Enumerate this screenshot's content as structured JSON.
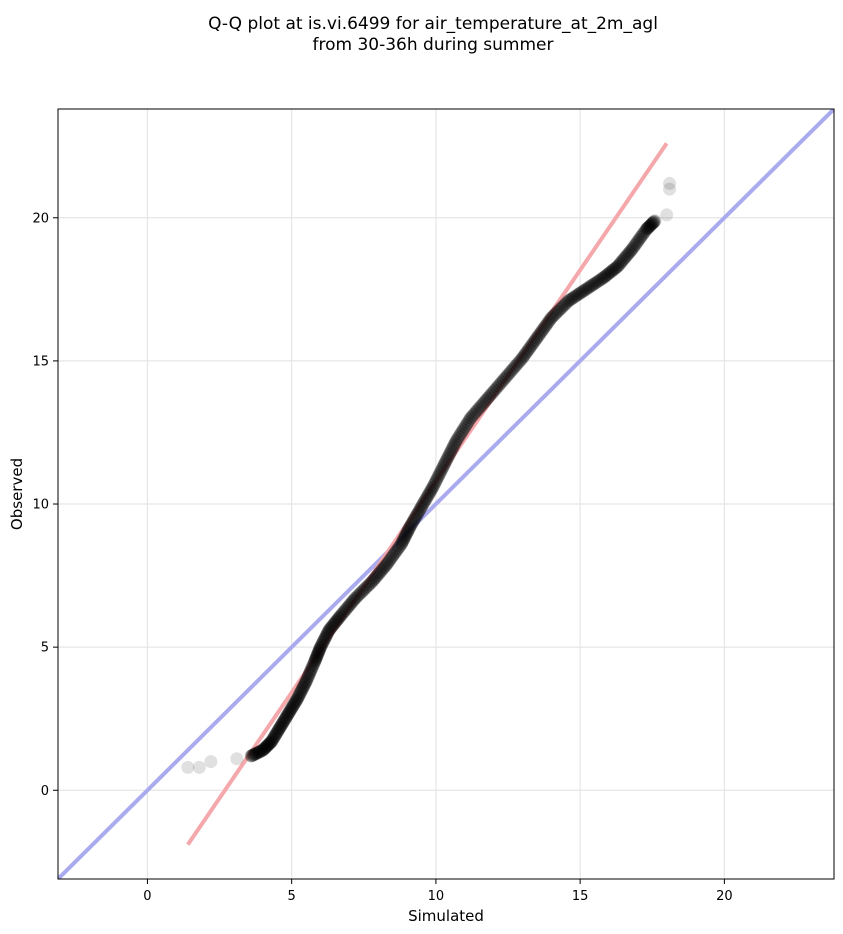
{
  "chart_data": {
    "type": "scatter",
    "title_lines": [
      "Q-Q plot at is.vi.6499 for air_temperature_at_2m_agl",
      "from 30-36h during summer"
    ],
    "xlabel": "Simulated",
    "ylabel": "Observed",
    "xlim": [
      -3.1,
      23.8
    ],
    "ylim": [
      -3.1,
      23.8
    ],
    "xticks": [
      0,
      5,
      10,
      15,
      20
    ],
    "yticks": [
      0,
      5,
      10,
      15,
      20
    ],
    "xtick_labels": [
      "0",
      "5",
      "10",
      "15",
      "20"
    ],
    "ytick_labels": [
      "0",
      "5",
      "10",
      "15",
      "20"
    ],
    "grid": true,
    "identity_line": {
      "from": [
        -3.1,
        -3.1
      ],
      "to": [
        23.8,
        23.8
      ],
      "color": "#aaaaee"
    },
    "fit_line": {
      "from": [
        1.4,
        -1.9
      ],
      "to": [
        18.0,
        22.6
      ],
      "color": "#f4a8ab"
    },
    "point_color": "#000000",
    "quantile_trace": [
      [
        1.4,
        0.8
      ],
      [
        1.8,
        0.8
      ],
      [
        2.2,
        1.0
      ],
      [
        3.1,
        1.1
      ],
      [
        3.6,
        1.2
      ],
      [
        4.0,
        1.4
      ],
      [
        4.3,
        1.7
      ],
      [
        4.6,
        2.2
      ],
      [
        4.9,
        2.7
      ],
      [
        5.2,
        3.2
      ],
      [
        5.5,
        3.8
      ],
      [
        5.8,
        4.5
      ],
      [
        6.0,
        5.0
      ],
      [
        6.3,
        5.6
      ],
      [
        6.7,
        6.1
      ],
      [
        7.2,
        6.7
      ],
      [
        7.8,
        7.3
      ],
      [
        8.3,
        7.9
      ],
      [
        8.8,
        8.6
      ],
      [
        9.1,
        9.2
      ],
      [
        9.5,
        9.9
      ],
      [
        9.9,
        10.6
      ],
      [
        10.3,
        11.4
      ],
      [
        10.7,
        12.2
      ],
      [
        11.2,
        13.0
      ],
      [
        11.8,
        13.7
      ],
      [
        12.4,
        14.4
      ],
      [
        13.0,
        15.1
      ],
      [
        13.5,
        15.8
      ],
      [
        14.0,
        16.5
      ],
      [
        14.6,
        17.1
      ],
      [
        15.2,
        17.5
      ],
      [
        15.8,
        17.9
      ],
      [
        16.3,
        18.3
      ],
      [
        16.8,
        18.9
      ],
      [
        17.3,
        19.6
      ],
      [
        17.6,
        19.9
      ],
      [
        18.0,
        20.1
      ],
      [
        18.1,
        21.0
      ],
      [
        18.1,
        21.2
      ]
    ]
  }
}
